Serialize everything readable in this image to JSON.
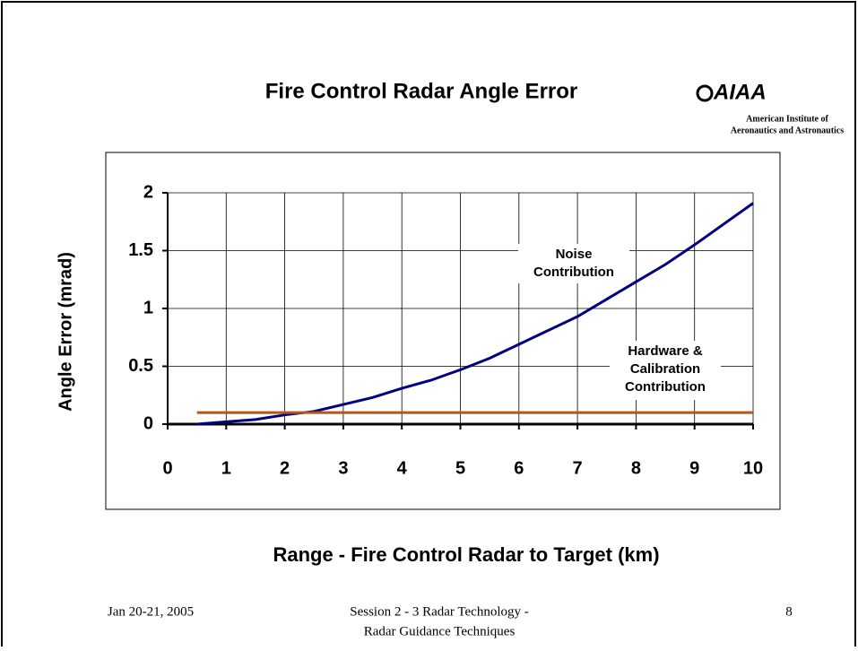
{
  "chart_data": {
    "type": "line",
    "title": "Fire Control Radar Angle Error",
    "x_label": "Range - Fire Control Radar to Target (km)",
    "y_label": "Angle Error (mrad)",
    "x": [
      0.5,
      1,
      1.5,
      2,
      2.5,
      3,
      3.5,
      4,
      4.5,
      5,
      5.5,
      6,
      6.5,
      7,
      7.5,
      8,
      8.5,
      9,
      9.5,
      10
    ],
    "series": [
      {
        "color": "#000080",
        "values": [
          0,
          0.02,
          0.04,
          0.08,
          0.11,
          0.17,
          0.23,
          0.31,
          0.38,
          0.47,
          0.57,
          0.69,
          0.81,
          0.93,
          1.08,
          1.23,
          1.38,
          1.55,
          1.73,
          1.91
        ]
      },
      {
        "color": "#b5541c",
        "values": [
          0.1,
          0.1,
          0.1,
          0.1,
          0.1,
          0.1,
          0.1,
          0.1,
          0.1,
          0.1,
          0.1,
          0.1,
          0.1,
          0.1,
          0.1,
          0.1,
          0.1,
          0.1,
          0.1,
          0.1
        ]
      }
    ],
    "annotations": [
      {
        "lines": [
          "Noise",
          "Contribution"
        ]
      },
      {
        "lines": [
          "Hardware &",
          "Calibration",
          "Contribution"
        ]
      }
    ],
    "xlim": [
      0,
      10
    ],
    "xticks": [
      0,
      1,
      2,
      3,
      4,
      5,
      6,
      7,
      8,
      9,
      10
    ],
    "ylim": [
      0,
      2
    ],
    "yticks": [
      0,
      0.5,
      1,
      1.5,
      2
    ],
    "grid": true
  },
  "logo": {
    "name": "AIAA",
    "lines": [
      "American Institute of",
      "Aeronautics and Astronautics"
    ]
  },
  "footer": {
    "date": "Jan 20-21, 2005",
    "session": [
      "Session 2 - 3  Radar Technology -",
      "Radar Guidance Techniques"
    ],
    "page": "8"
  }
}
